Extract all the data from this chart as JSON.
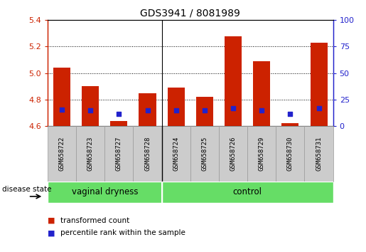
{
  "title": "GDS3941 / 8081989",
  "samples": [
    "GSM658722",
    "GSM658723",
    "GSM658727",
    "GSM658728",
    "GSM658724",
    "GSM658725",
    "GSM658726",
    "GSM658729",
    "GSM658730",
    "GSM658731"
  ],
  "transformed_count": [
    5.04,
    4.9,
    4.64,
    4.85,
    4.89,
    4.82,
    5.28,
    5.09,
    4.62,
    5.23
  ],
  "percentile_rank": [
    15.5,
    14.5,
    11.5,
    14.5,
    14.5,
    14.5,
    16.5,
    14.5,
    11.5,
    16.5
  ],
  "ymin": 4.6,
  "ymax": 5.4,
  "yticks": [
    4.6,
    4.8,
    5.0,
    5.2,
    5.4
  ],
  "right_yticks": [
    0,
    25,
    50,
    75,
    100
  ],
  "bar_color": "#cc2200",
  "marker_color": "#2222cc",
  "groups": [
    {
      "label": "vaginal dryness",
      "start": 0,
      "end": 4
    },
    {
      "label": "control",
      "start": 4,
      "end": 10
    }
  ],
  "group_color": "#66dd66",
  "legend_items": [
    {
      "label": "transformed count",
      "color": "#cc2200"
    },
    {
      "label": "percentile rank within the sample",
      "color": "#2222cc"
    }
  ],
  "disease_state_label": "disease state",
  "background_color": "#ffffff",
  "bar_width": 0.6,
  "percentile_marker_size": 25,
  "label_box_color": "#cccccc",
  "label_box_edge": "#999999"
}
